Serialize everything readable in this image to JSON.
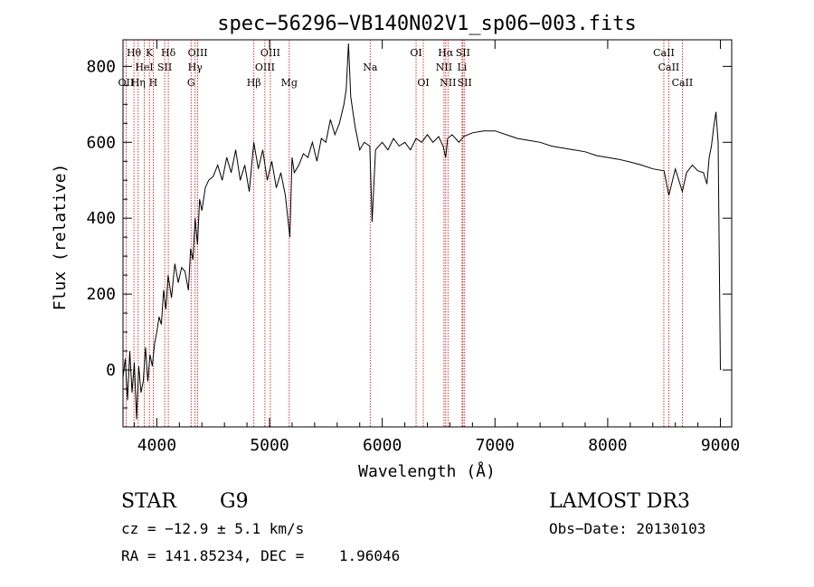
{
  "chart_data": {
    "type": "line",
    "title": "spec−56296−VB140N02V1_sp06−003.fits",
    "xlabel": "Wavelength (Å)",
    "ylabel": "Flux (relative)",
    "xlim": [
      3700,
      9100
    ],
    "ylim": [
      -150,
      870
    ],
    "xticks": [
      4000,
      5000,
      6000,
      7000,
      8000,
      9000
    ],
    "yticks": [
      0,
      200,
      400,
      600,
      800
    ],
    "xtick_labels": [
      "4000",
      "5000",
      "6000",
      "7000",
      "8000",
      "9000"
    ],
    "ytick_labels": [
      "0",
      "200",
      "400",
      "600",
      "800"
    ],
    "spectrum": {
      "x": [
        3700,
        3720,
        3740,
        3760,
        3780,
        3800,
        3820,
        3840,
        3860,
        3880,
        3900,
        3920,
        3940,
        3960,
        3980,
        4000,
        4020,
        4040,
        4060,
        4080,
        4100,
        4130,
        4160,
        4190,
        4220,
        4250,
        4280,
        4300,
        4320,
        4340,
        4360,
        4380,
        4400,
        4430,
        4460,
        4500,
        4540,
        4580,
        4620,
        4660,
        4700,
        4740,
        4780,
        4820,
        4860,
        4900,
        4940,
        4980,
        5020,
        5060,
        5100,
        5140,
        5180,
        5200,
        5220,
        5260,
        5300,
        5340,
        5380,
        5420,
        5460,
        5500,
        5540,
        5580,
        5620,
        5660,
        5680,
        5700,
        5720,
        5740,
        5760,
        5780,
        5800,
        5840,
        5890,
        5910,
        5940,
        6000,
        6050,
        6100,
        6150,
        6200,
        6250,
        6300,
        6350,
        6400,
        6450,
        6500,
        6540,
        6563,
        6580,
        6620,
        6680,
        6720,
        6800,
        6900,
        7000,
        7100,
        7200,
        7300,
        7400,
        7500,
        7600,
        7700,
        7800,
        7900,
        8000,
        8100,
        8200,
        8300,
        8400,
        8500,
        8542,
        8600,
        8662,
        8700,
        8750,
        8800,
        8850,
        8880,
        8900,
        8920,
        8940,
        8960,
        8980,
        9000
      ],
      "y": [
        -20,
        30,
        -80,
        50,
        -60,
        20,
        -130,
        10,
        -60,
        -30,
        60,
        -30,
        40,
        10,
        70,
        100,
        140,
        120,
        210,
        160,
        250,
        190,
        280,
        230,
        270,
        260,
        210,
        320,
        290,
        400,
        330,
        450,
        420,
        480,
        500,
        510,
        540,
        500,
        560,
        520,
        580,
        500,
        540,
        470,
        600,
        530,
        580,
        500,
        550,
        480,
        520,
        460,
        350,
        560,
        520,
        540,
        570,
        560,
        600,
        550,
        610,
        600,
        660,
        620,
        650,
        700,
        740,
        860,
        720,
        680,
        640,
        610,
        580,
        600,
        590,
        390,
        580,
        600,
        580,
        610,
        590,
        600,
        580,
        610,
        600,
        620,
        600,
        615,
        590,
        560,
        610,
        620,
        600,
        615,
        625,
        630,
        630,
        620,
        610,
        605,
        600,
        590,
        585,
        580,
        575,
        565,
        560,
        555,
        548,
        540,
        530,
        525,
        460,
        530,
        470,
        520,
        540,
        525,
        520,
        490,
        560,
        590,
        640,
        680,
        600,
        0
      ]
    },
    "lines": [
      {
        "name": "Hθ",
        "wl": 3797,
        "row": 1
      },
      {
        "name": "OII",
        "wl": 3727,
        "row": 3
      },
      {
        "name": "Hη",
        "wl": 3835,
        "row": 3
      },
      {
        "name": "HeI",
        "wl": 3889,
        "row": 2
      },
      {
        "name": "K",
        "wl": 3934,
        "row": 1
      },
      {
        "name": "H",
        "wl": 3968,
        "row": 3
      },
      {
        "name": "SII",
        "wl": 4070,
        "row": 2
      },
      {
        "name": "Hδ",
        "wl": 4102,
        "row": 1
      },
      {
        "name": "G",
        "wl": 4304,
        "row": 3
      },
      {
        "name": "Hγ",
        "wl": 4340,
        "row": 2
      },
      {
        "name": "OIII",
        "wl": 4363,
        "row": 1
      },
      {
        "name": "Hβ",
        "wl": 4861,
        "row": 3
      },
      {
        "name": "OIII",
        "wl": 4959,
        "row": 2
      },
      {
        "name": "OIII",
        "wl": 5007,
        "row": 1
      },
      {
        "name": "Mg",
        "wl": 5175,
        "row": 3
      },
      {
        "name": "Na",
        "wl": 5893,
        "row": 2
      },
      {
        "name": "OI",
        "wl": 6300,
        "row": 1
      },
      {
        "name": "OI",
        "wl": 6364,
        "row": 3
      },
      {
        "name": "NII",
        "wl": 6548,
        "row": 2
      },
      {
        "name": "Hα",
        "wl": 6563,
        "row": 1
      },
      {
        "name": "NII",
        "wl": 6583,
        "row": 3
      },
      {
        "name": "Li",
        "wl": 6708,
        "row": 2
      },
      {
        "name": "SII",
        "wl": 6716,
        "row": 1
      },
      {
        "name": "SII",
        "wl": 6731,
        "row": 3
      },
      {
        "name": "CaII",
        "wl": 8498,
        "row": 1
      },
      {
        "name": "CaII",
        "wl": 8542,
        "row": 2
      },
      {
        "name": "CaII",
        "wl": 8662,
        "row": 3
      }
    ]
  },
  "info": {
    "class": "STAR",
    "subclass": "G9",
    "survey": "LAMOST DR3",
    "cz": "cz = −12.9 ± 5.1 km/s",
    "obs_date": "Obs−Date: 20130103",
    "coords": "RA = 141.85234, DEC =    1.96046"
  },
  "colors": {
    "spectrum": "#000000",
    "line_marker": "#cc0000",
    "axis": "#000000"
  }
}
